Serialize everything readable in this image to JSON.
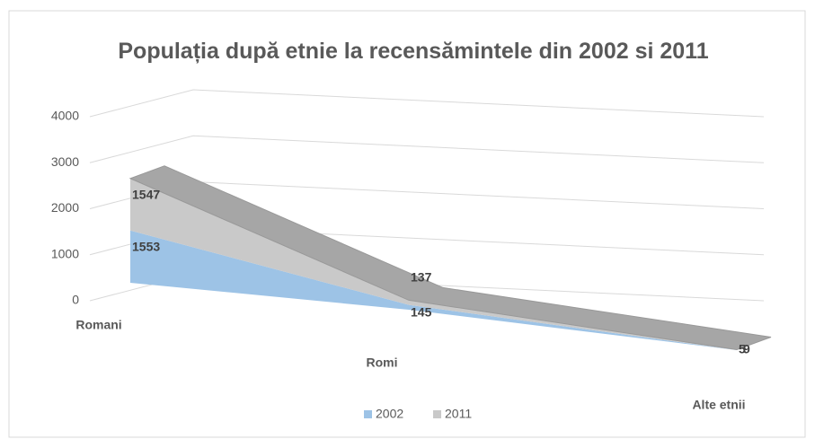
{
  "chart_data": {
    "type": "area3d",
    "title": "Populația după etnie la recensămintele din 2002 si 2011",
    "categories": [
      "Romani",
      "Romi",
      "Alte etnii"
    ],
    "series": [
      {
        "name": "2002",
        "color": "#9dc3e6",
        "values": [
          1553,
          145,
          5
        ]
      },
      {
        "name": "2011",
        "color": "#c9c9c9",
        "values": [
          1547,
          137,
          9
        ]
      }
    ],
    "stacked": true,
    "ylim": [
      0,
      4000
    ],
    "yticks": [
      0,
      1000,
      2000,
      3000,
      4000
    ],
    "grid": true,
    "legend": "bottom"
  }
}
